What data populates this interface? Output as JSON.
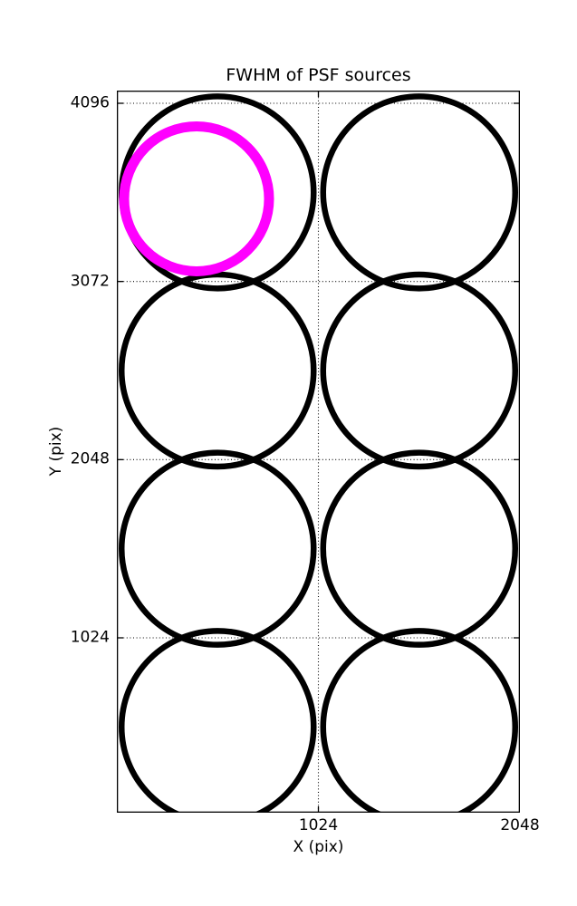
{
  "chart_data": {
    "type": "scatter",
    "title": "FWHM of PSF sources",
    "xlabel": "X (pix)",
    "ylabel": "Y (pix)",
    "xlim": [
      0,
      2048
    ],
    "ylim": [
      0,
      4169
    ],
    "xticks": [
      1024,
      2048
    ],
    "yticks": [
      4096,
      3072,
      2048,
      1024
    ],
    "grid": {
      "style": "dotted",
      "color": "#000000",
      "x_positions": [
        1024,
        2048
      ],
      "y_positions": [
        4096,
        3072,
        2048,
        1024
      ]
    },
    "background_color": "#ffffff",
    "frame_color": "#000000",
    "series": [
      {
        "name": "psf_sources",
        "marker": "circle_outline",
        "color": "#000000",
        "stroke_px": 6.5,
        "radius_px": 106,
        "points": [
          {
            "x": 512,
            "y": 3584
          },
          {
            "x": 1536,
            "y": 3584
          },
          {
            "x": 512,
            "y": 2560
          },
          {
            "x": 1536,
            "y": 2560
          },
          {
            "x": 512,
            "y": 1536
          },
          {
            "x": 1536,
            "y": 1536
          },
          {
            "x": 512,
            "y": 512
          },
          {
            "x": 1536,
            "y": 512
          }
        ]
      },
      {
        "name": "highlighted_source",
        "marker": "circle_outline",
        "color": "#ff00ff",
        "stroke_px": 11,
        "radius_px": 80,
        "points": [
          {
            "x": 405,
            "y": 3547
          }
        ]
      }
    ]
  }
}
